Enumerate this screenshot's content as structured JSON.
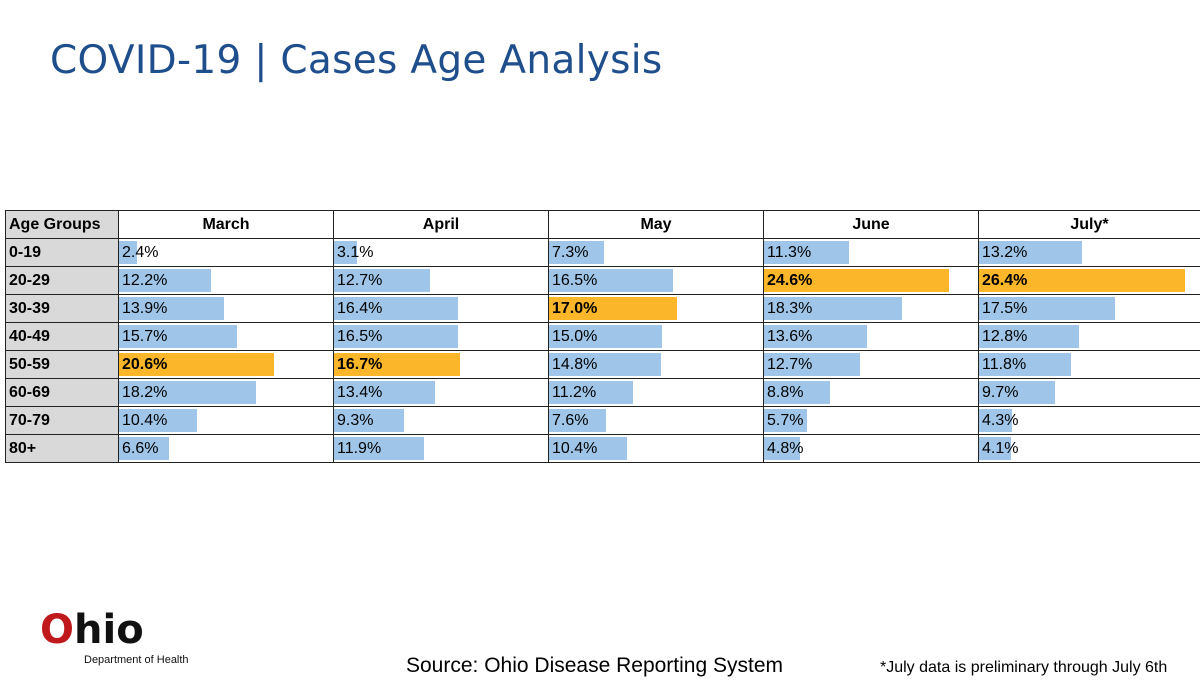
{
  "title": "COVID-19 | Cases Age Analysis",
  "chart_data": {
    "type": "table",
    "title": "COVID-19 | Cases Age Analysis",
    "row_header": "Age Groups",
    "categories": [
      "0-19",
      "20-29",
      "30-39",
      "40-49",
      "50-59",
      "60-69",
      "70-79",
      "80+"
    ],
    "series": [
      {
        "name": "March",
        "values": [
          2.4,
          12.2,
          13.9,
          15.7,
          20.6,
          18.2,
          10.4,
          6.6
        ],
        "highlight_index": 4
      },
      {
        "name": "April",
        "values": [
          3.1,
          12.7,
          16.4,
          16.5,
          16.7,
          13.4,
          9.3,
          11.9
        ],
        "highlight_index": 4
      },
      {
        "name": "May",
        "values": [
          7.3,
          16.5,
          17.0,
          15.0,
          14.8,
          11.2,
          7.6,
          10.4
        ],
        "highlight_index": 2
      },
      {
        "name": "June",
        "values": [
          11.3,
          24.6,
          18.3,
          13.6,
          12.7,
          8.8,
          5.7,
          4.8
        ],
        "highlight_index": 1
      },
      {
        "name": "July*",
        "values": [
          13.2,
          26.4,
          17.5,
          12.8,
          11.8,
          9.7,
          4.3,
          4.1
        ],
        "highlight_index": 1
      }
    ],
    "value_suffix": "%",
    "bar_max": 26.4,
    "colors": {
      "bar": "#9fc5e8",
      "highlight": "#fbb62a",
      "header_fill": "#d9d9d9"
    }
  },
  "footer": {
    "logo_word_first": "O",
    "logo_word_rest": "hio",
    "logo_sub": "Department of Health",
    "source": "Source: Ohio Disease Reporting System",
    "note": "*July data is preliminary through July 6th"
  }
}
